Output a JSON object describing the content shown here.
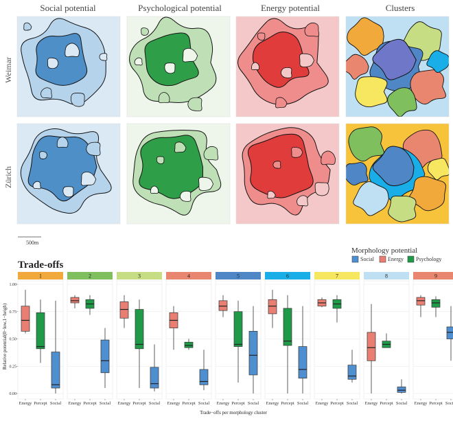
{
  "maps": {
    "columns": [
      "Social potential",
      "Psychological potential",
      "Energy potential",
      "Clusters"
    ],
    "rows": [
      "Weimar",
      "Zürich"
    ],
    "scale_label": "500m",
    "colors": {
      "social": "#4f8fc7",
      "psych": "#2e9e48",
      "energy": "#e03c3c"
    }
  },
  "legend": {
    "title": "Morphology potential",
    "items": [
      {
        "label": "Social",
        "color": "#4f8fcf"
      },
      {
        "label": "Energy",
        "color": "#e87f72"
      },
      {
        "label": "Psychology",
        "color": "#1f9a48"
      }
    ]
  },
  "chart_data": {
    "type": "box",
    "title": "Trade-offs",
    "xlabel": "Trade−offs per morphology cluster",
    "ylabel": "Relative potential(0−low,1−heigh)",
    "ylim": [
      0,
      1
    ],
    "yticks": [
      "0.00",
      "0.25",
      "0.50",
      "0.75",
      "1.00"
    ],
    "categories": [
      "Energy",
      "Percept",
      "Social"
    ],
    "series_colors": {
      "Energy": "#e87f72",
      "Percept": "#1f9a48",
      "Social": "#4f8fcf"
    },
    "panels": [
      {
        "label": "1",
        "strip_color": "#f2a93b",
        "boxes": [
          {
            "min": 0.55,
            "q1": 0.57,
            "median": 0.67,
            "q3": 0.8,
            "max": 0.95
          },
          {
            "min": 0.28,
            "q1": 0.41,
            "median": 0.43,
            "q3": 0.74,
            "max": 0.86
          },
          {
            "min": 0.0,
            "q1": 0.05,
            "median": 0.08,
            "q3": 0.38,
            "max": 0.85
          }
        ]
      },
      {
        "label": "2",
        "strip_color": "#7fbf5e",
        "boxes": [
          {
            "min": 0.78,
            "q1": 0.83,
            "median": 0.85,
            "q3": 0.88,
            "max": 0.9
          },
          {
            "min": 0.72,
            "q1": 0.78,
            "median": 0.82,
            "q3": 0.86,
            "max": 0.9
          },
          {
            "min": 0.05,
            "q1": 0.19,
            "median": 0.3,
            "q3": 0.49,
            "max": 0.6
          }
        ]
      },
      {
        "label": "3",
        "strip_color": "#c6dd84",
        "boxes": [
          {
            "min": 0.6,
            "q1": 0.69,
            "median": 0.77,
            "q3": 0.84,
            "max": 0.9
          },
          {
            "min": 0.05,
            "q1": 0.41,
            "median": 0.45,
            "q3": 0.77,
            "max": 0.86
          },
          {
            "min": 0.02,
            "q1": 0.05,
            "median": 0.09,
            "q3": 0.24,
            "max": 0.45
          }
        ]
      },
      {
        "label": "4",
        "strip_color": "#e8866f",
        "boxes": [
          {
            "min": 0.4,
            "q1": 0.6,
            "median": 0.67,
            "q3": 0.74,
            "max": 0.8
          },
          {
            "min": 0.4,
            "q1": 0.42,
            "median": 0.44,
            "q3": 0.47,
            "max": 0.5
          },
          {
            "min": 0.03,
            "q1": 0.08,
            "median": 0.11,
            "q3": 0.22,
            "max": 0.4
          }
        ]
      },
      {
        "label": "5",
        "strip_color": "#4f86c6",
        "boxes": [
          {
            "min": 0.7,
            "q1": 0.76,
            "median": 0.8,
            "q3": 0.85,
            "max": 0.9
          },
          {
            "min": 0.1,
            "q1": 0.43,
            "median": 0.45,
            "q3": 0.75,
            "max": 0.85
          },
          {
            "min": 0.0,
            "q1": 0.17,
            "median": 0.35,
            "q3": 0.57,
            "max": 0.8
          }
        ]
      },
      {
        "label": "6",
        "strip_color": "#19aee8",
        "boxes": [
          {
            "min": 0.6,
            "q1": 0.73,
            "median": 0.8,
            "q3": 0.86,
            "max": 0.95
          },
          {
            "min": 0.0,
            "q1": 0.44,
            "median": 0.48,
            "q3": 0.78,
            "max": 0.9
          },
          {
            "min": 0.0,
            "q1": 0.14,
            "median": 0.22,
            "q3": 0.43,
            "max": 0.8
          }
        ]
      },
      {
        "label": "7",
        "strip_color": "#f6e660",
        "boxes": [
          {
            "min": 0.79,
            "q1": 0.8,
            "median": 0.83,
            "q3": 0.86,
            "max": 0.88
          },
          {
            "min": 0.65,
            "q1": 0.78,
            "median": 0.82,
            "q3": 0.86,
            "max": 0.9
          },
          {
            "min": 0.1,
            "q1": 0.13,
            "median": 0.16,
            "q3": 0.26,
            "max": 0.4
          }
        ]
      },
      {
        "label": "8",
        "strip_color": "#bfdff2",
        "boxes": [
          {
            "min": 0.0,
            "q1": 0.3,
            "median": 0.42,
            "q3": 0.56,
            "max": 0.82
          },
          {
            "min": 0.42,
            "q1": 0.42,
            "median": 0.45,
            "q3": 0.48,
            "max": 0.55
          },
          {
            "min": 0.0,
            "q1": 0.01,
            "median": 0.03,
            "q3": 0.06,
            "max": 0.13
          }
        ]
      },
      {
        "label": "9",
        "strip_color": "#e8866f",
        "boxes": [
          {
            "min": 0.7,
            "q1": 0.81,
            "median": 0.85,
            "q3": 0.88,
            "max": 0.9
          },
          {
            "min": 0.7,
            "q1": 0.79,
            "median": 0.83,
            "q3": 0.86,
            "max": 0.89
          },
          {
            "min": 0.3,
            "q1": 0.5,
            "median": 0.56,
            "q3": 0.61,
            "max": 0.8
          }
        ]
      }
    ]
  }
}
